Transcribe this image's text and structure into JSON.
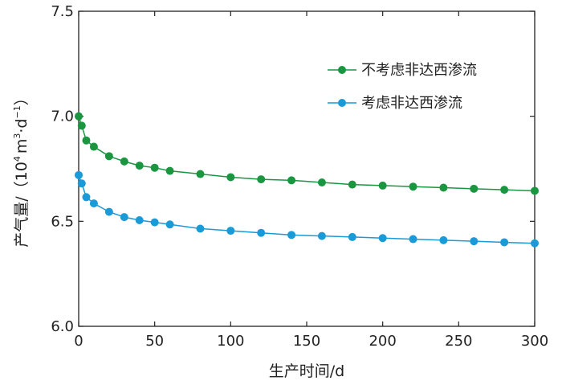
{
  "chart_data": {
    "type": "line",
    "title": "",
    "xlabel": "生产时间/d",
    "ylabel_main": "产气量/（10",
    "ylabel_sup1": "4",
    "ylabel_mid1": "m",
    "ylabel_sup2": "3",
    "ylabel_mid2": "·d",
    "ylabel_sup3": "−1",
    "ylabel_end": "）",
    "xlim": [
      0,
      300
    ],
    "ylim": [
      6.0,
      7.5
    ],
    "xticks": [
      0,
      50,
      100,
      150,
      200,
      250,
      300
    ],
    "xtick_labels": [
      "0",
      "50",
      "100",
      "150",
      "200",
      "250",
      "300"
    ],
    "yticks": [
      6.0,
      6.5,
      7.0,
      7.5
    ],
    "ytick_labels": [
      "6.0",
      "6.5",
      "7.0",
      "7.5"
    ],
    "grid": false,
    "legend_position": "top-right",
    "x": [
      0,
      2,
      5,
      10,
      20,
      30,
      40,
      50,
      60,
      80,
      100,
      120,
      140,
      160,
      180,
      200,
      220,
      240,
      260,
      280,
      300
    ],
    "series": [
      {
        "name": "不考虑非达西渗流",
        "color": "#1a9641",
        "values": [
          7.0,
          6.955,
          6.885,
          6.855,
          6.81,
          6.785,
          6.765,
          6.755,
          6.74,
          6.725,
          6.71,
          6.7,
          6.695,
          6.685,
          6.675,
          6.67,
          6.665,
          6.66,
          6.655,
          6.65,
          6.645
        ]
      },
      {
        "name": "考虑非达西渗流",
        "color": "#1a9ad6",
        "values": [
          6.72,
          6.68,
          6.615,
          6.585,
          6.545,
          6.52,
          6.505,
          6.495,
          6.485,
          6.465,
          6.455,
          6.445,
          6.435,
          6.43,
          6.425,
          6.42,
          6.415,
          6.41,
          6.405,
          6.4,
          6.395
        ]
      }
    ]
  }
}
